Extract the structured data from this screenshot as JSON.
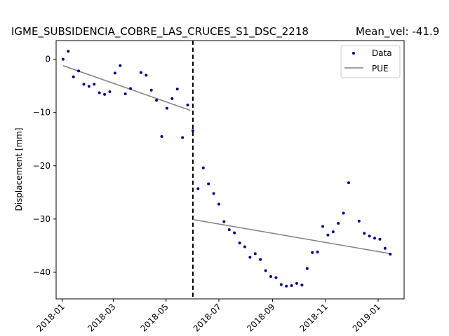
{
  "chart_data": {
    "type": "scatter",
    "title": "IGME_SUBSIDENCIA_COBRE_LAS_CRUCES_S1_DSC_2218",
    "title_right": "Mean_vel: -41.9",
    "xlabel": "",
    "ylabel": "Displacement [mm]",
    "x_ticks": [
      "2018-01",
      "2018-03",
      "2018-05",
      "2018-07",
      "2018-09",
      "2018-11",
      "2019-01"
    ],
    "y_ticks": [
      "0",
      "−10",
      "−20",
      "−30",
      "−40"
    ],
    "xlim": [
      "2017-12-25",
      "2019-01-31"
    ],
    "ylim": [
      -45,
      3.5
    ],
    "grid": false,
    "legend_position": "top-right",
    "colors": {
      "data": "#00008b",
      "pue": "#808080",
      "event": "#000000"
    },
    "series": [
      {
        "name": "Data",
        "type": "scatter",
        "x": [
          "2018-01-02",
          "2018-01-08",
          "2018-01-14",
          "2018-01-20",
          "2018-01-26",
          "2018-02-01",
          "2018-02-07",
          "2018-02-13",
          "2018-02-19",
          "2018-02-25",
          "2018-03-03",
          "2018-03-09",
          "2018-03-15",
          "2018-03-21",
          "2018-04-02",
          "2018-04-08",
          "2018-04-14",
          "2018-04-20",
          "2018-04-26",
          "2018-05-02",
          "2018-05-08",
          "2018-05-14",
          "2018-05-20",
          "2018-05-26",
          "2018-06-01",
          "2018-06-07",
          "2018-06-13",
          "2018-06-19",
          "2018-06-25",
          "2018-07-01",
          "2018-07-07",
          "2018-07-13",
          "2018-07-19",
          "2018-07-25",
          "2018-07-31",
          "2018-08-06",
          "2018-08-12",
          "2018-08-18",
          "2018-08-24",
          "2018-08-30",
          "2018-09-05",
          "2018-09-11",
          "2018-09-17",
          "2018-09-23",
          "2018-09-29",
          "2018-10-05",
          "2018-10-11",
          "2018-10-17",
          "2018-10-23",
          "2018-10-29",
          "2018-11-04",
          "2018-11-10",
          "2018-11-16",
          "2018-11-22",
          "2018-11-28",
          "2018-12-10",
          "2018-12-16",
          "2018-12-22",
          "2018-12-28",
          "2019-01-03",
          "2019-01-09",
          "2019-01-15"
        ],
        "y": [
          0.0,
          1.5,
          -3.3,
          -2.2,
          -4.7,
          -5.1,
          -4.7,
          -6.3,
          -6.6,
          -6.1,
          -2.6,
          -1.2,
          -6.5,
          -5.5,
          -2.5,
          -3.0,
          -5.8,
          -7.7,
          -14.5,
          -9.2,
          -7.4,
          -5.6,
          -14.7,
          -8.6,
          -13.4,
          -24.3,
          -20.4,
          -23.4,
          -25.2,
          -27.2,
          -30.5,
          -32.0,
          -32.6,
          -34.5,
          -35.2,
          -37.2,
          -36.5,
          -37.6,
          -39.7,
          -40.8,
          -41.0,
          -42.3,
          -42.6,
          -42.5,
          -42.1,
          -42.4,
          -39.3,
          -36.3,
          -36.2,
          -31.4,
          -33.0,
          -32.4,
          -30.8,
          -28.9,
          -23.2,
          -30.4,
          -32.7,
          -33.2,
          -33.6,
          -33.8,
          -35.5,
          -36.6
        ]
      },
      {
        "name": "PUE",
        "type": "line",
        "segments": [
          {
            "x": [
              "2018-01-02",
              "2018-05-29"
            ],
            "y": [
              -1.2,
              -9.6
            ]
          },
          {
            "x": [
              "2018-06-01",
              "2019-01-15"
            ],
            "y": [
              -30.1,
              -36.5
            ]
          }
        ]
      }
    ],
    "event_line": {
      "x": "2018-06-01",
      "style": "dashed"
    }
  }
}
